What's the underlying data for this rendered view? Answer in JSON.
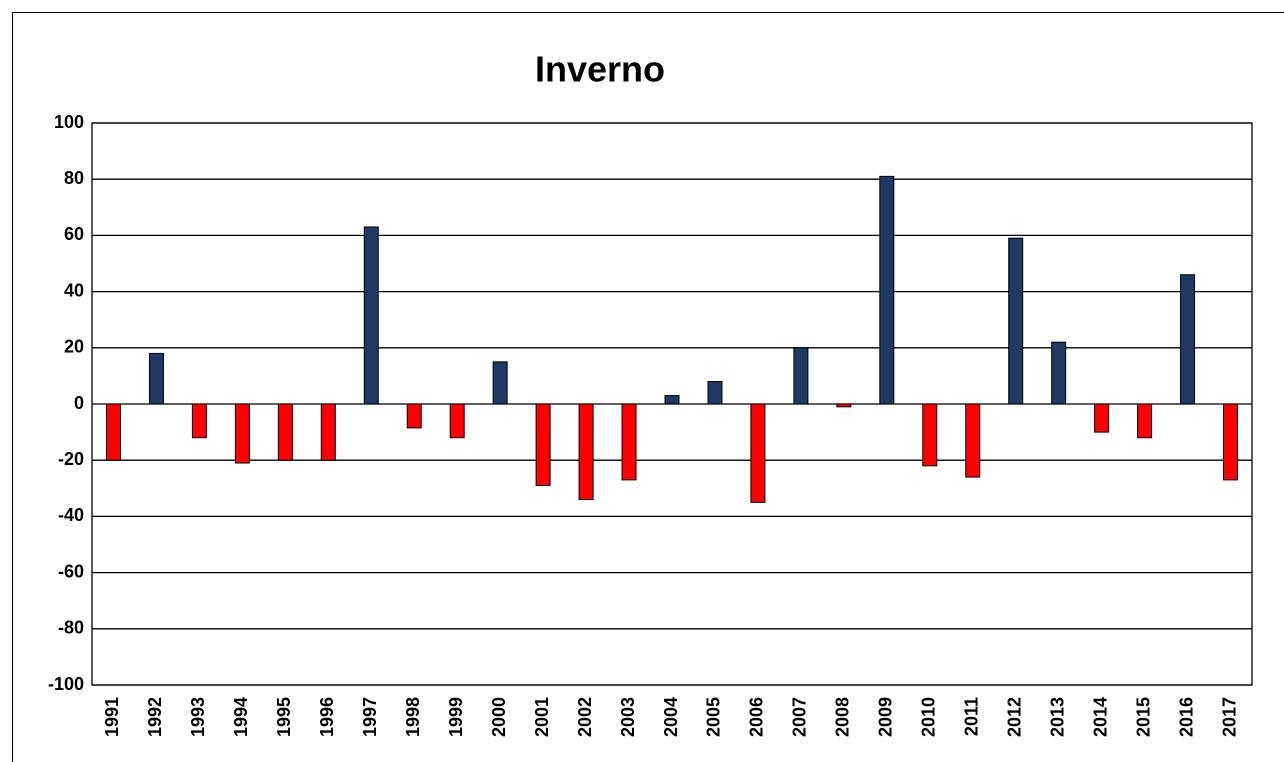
{
  "chart_data": {
    "type": "bar",
    "title": "Inverno",
    "categories": [
      "1991",
      "1992",
      "1993",
      "1994",
      "1995",
      "1996",
      "1997",
      "1998",
      "1999",
      "2000",
      "2001",
      "2002",
      "2003",
      "2004",
      "2005",
      "2006",
      "2007",
      "2008",
      "2009",
      "2010",
      "2011",
      "2012",
      "2013",
      "2014",
      "2015",
      "2016",
      "2017"
    ],
    "values": [
      -20,
      18,
      -12,
      -21,
      -20,
      -20,
      63,
      -8.5,
      -12,
      15,
      -29,
      -34,
      -27,
      3,
      8,
      -35,
      20,
      -1,
      81,
      -22,
      -26,
      59,
      22,
      -10,
      -12,
      46,
      -27
    ],
    "positive_color": "#203864",
    "negative_color": "#ff0000",
    "ylim": [
      -100,
      100
    ],
    "yticks": [
      -100,
      -80,
      -60,
      -40,
      -20,
      0,
      20,
      40,
      60,
      80,
      100
    ],
    "grid": true
  }
}
